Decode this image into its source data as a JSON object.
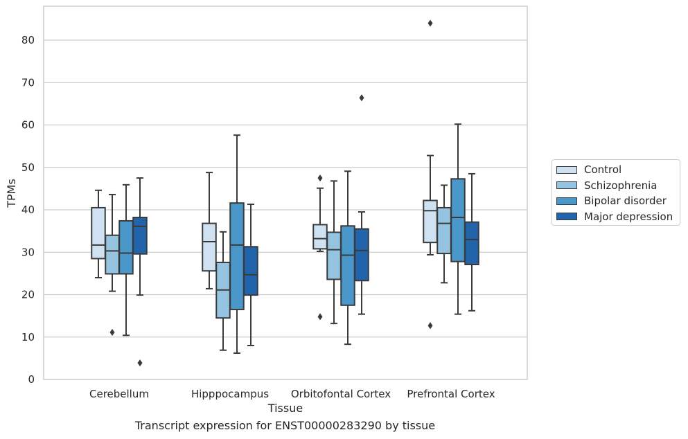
{
  "chart_data": {
    "type": "box",
    "categories": [
      "Cerebellum",
      "Hipppocampus",
      "Orbitofontal Cortex",
      "Prefrontal Cortex"
    ],
    "xlabel": "Tissue",
    "ylabel": "TPMs",
    "ylim": [
      0,
      88
    ],
    "yticks": [
      0,
      10,
      20,
      30,
      40,
      50,
      60,
      70,
      80
    ],
    "grid": true,
    "legend_position": "right",
    "caption": "Transcript expression for ENST00000283290 by tissue",
    "series": [
      {
        "name": "Control",
        "color": "#d0e1f2",
        "boxes": [
          {
            "whisker_low": 24.0,
            "q1": 28.5,
            "median": 31.7,
            "q3": 40.5,
            "whisker_high": 44.6,
            "outliers": []
          },
          {
            "whisker_low": 21.4,
            "q1": 25.6,
            "median": 32.5,
            "q3": 36.8,
            "whisker_high": 48.8,
            "outliers": []
          },
          {
            "whisker_low": 30.2,
            "q1": 30.8,
            "median": 33.2,
            "q3": 36.5,
            "whisker_high": 45.1,
            "outliers": [
              14.8,
              47.5
            ]
          },
          {
            "whisker_low": 29.4,
            "q1": 32.3,
            "median": 39.8,
            "q3": 42.2,
            "whisker_high": 52.8,
            "outliers": [
              12.7,
              84.0
            ]
          }
        ]
      },
      {
        "name": "Schizophrenia",
        "color": "#94c4df",
        "boxes": [
          {
            "whisker_low": 20.8,
            "q1": 24.9,
            "median": 30.3,
            "q3": 34.0,
            "whisker_high": 43.6,
            "outliers": [
              11.1
            ]
          },
          {
            "whisker_low": 6.9,
            "q1": 14.5,
            "median": 21.1,
            "q3": 27.6,
            "whisker_high": 34.8,
            "outliers": []
          },
          {
            "whisker_low": 13.2,
            "q1": 23.6,
            "median": 30.6,
            "q3": 34.7,
            "whisker_high": 46.8,
            "outliers": []
          },
          {
            "whisker_low": 22.8,
            "q1": 29.7,
            "median": 36.8,
            "q3": 40.5,
            "whisker_high": 45.8,
            "outliers": []
          }
        ]
      },
      {
        "name": "Bipolar disorder",
        "color": "#4a98c9",
        "boxes": [
          {
            "whisker_low": 10.4,
            "q1": 24.9,
            "median": 29.8,
            "q3": 37.4,
            "whisker_high": 45.9,
            "outliers": []
          },
          {
            "whisker_low": 6.2,
            "q1": 16.5,
            "median": 31.7,
            "q3": 41.6,
            "whisker_high": 57.6,
            "outliers": []
          },
          {
            "whisker_low": 8.3,
            "q1": 17.5,
            "median": 29.3,
            "q3": 36.2,
            "whisker_high": 49.1,
            "outliers": []
          },
          {
            "whisker_low": 15.4,
            "q1": 27.8,
            "median": 38.2,
            "q3": 47.3,
            "whisker_high": 60.2,
            "outliers": []
          }
        ]
      },
      {
        "name": "Major depression",
        "color": "#2164ab",
        "boxes": [
          {
            "whisker_low": 19.9,
            "q1": 29.6,
            "median": 36.1,
            "q3": 38.2,
            "whisker_high": 47.5,
            "outliers": [
              3.9
            ]
          },
          {
            "whisker_low": 8.0,
            "q1": 19.9,
            "median": 24.7,
            "q3": 31.3,
            "whisker_high": 41.3,
            "outliers": []
          },
          {
            "whisker_low": 15.4,
            "q1": 23.3,
            "median": 30.4,
            "q3": 35.5,
            "whisker_high": 39.5,
            "outliers": [
              66.4
            ]
          },
          {
            "whisker_low": 16.2,
            "q1": 27.1,
            "median": 33.0,
            "q3": 37.1,
            "whisker_high": 48.5,
            "outliers": []
          }
        ]
      }
    ]
  }
}
